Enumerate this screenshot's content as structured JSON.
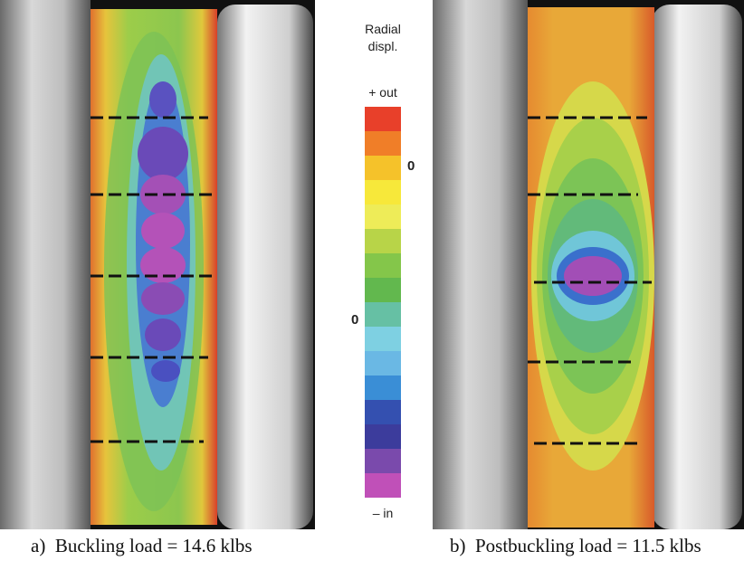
{
  "colorbar": {
    "title": [
      "Radial",
      "displ."
    ],
    "top_label": "+ out",
    "bottom_label": "– in",
    "zero_labels": [
      "0",
      "0"
    ]
  },
  "captions": [
    "a)  Buckling load = 14.6 klbs",
    "b)  Postbuckling load = 11.5 klbs"
  ]
}
